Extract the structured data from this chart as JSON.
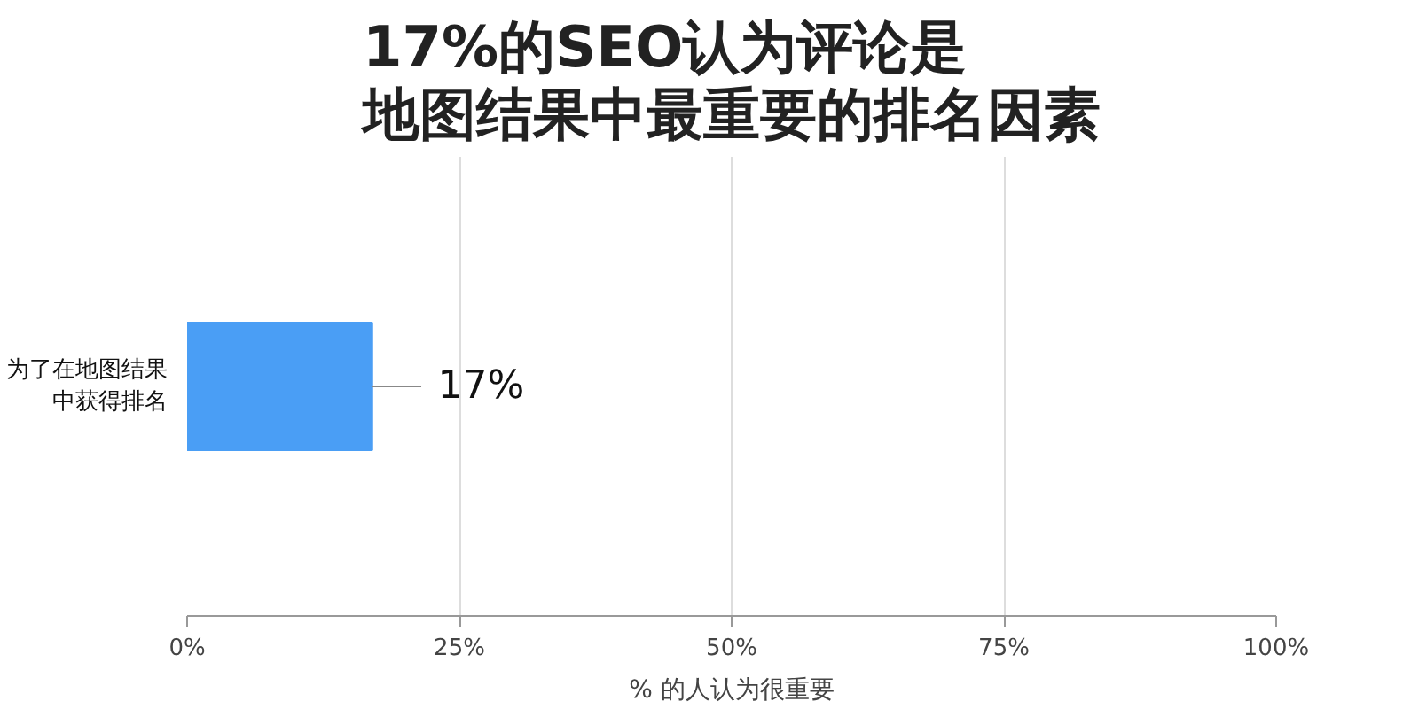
{
  "chart_data": {
    "type": "bar",
    "orientation": "horizontal",
    "title": "17%的SEO认为评论是地图结果中最重要的排名因素",
    "categories": [
      "为了在地图结果中获得排名"
    ],
    "values": [
      17
    ],
    "value_labels": [
      "17%"
    ],
    "color": "#4a9ef5",
    "xlabel": "% 的人认为很重要",
    "xlim": [
      0,
      100
    ],
    "xticks": [
      {
        "value": 0,
        "label": "0%"
      },
      {
        "value": 25,
        "label": "25%"
      },
      {
        "value": 50,
        "label": "50%"
      },
      {
        "value": 75,
        "label": "75%"
      },
      {
        "value": 100,
        "label": "100%"
      }
    ],
    "grid": "x"
  }
}
